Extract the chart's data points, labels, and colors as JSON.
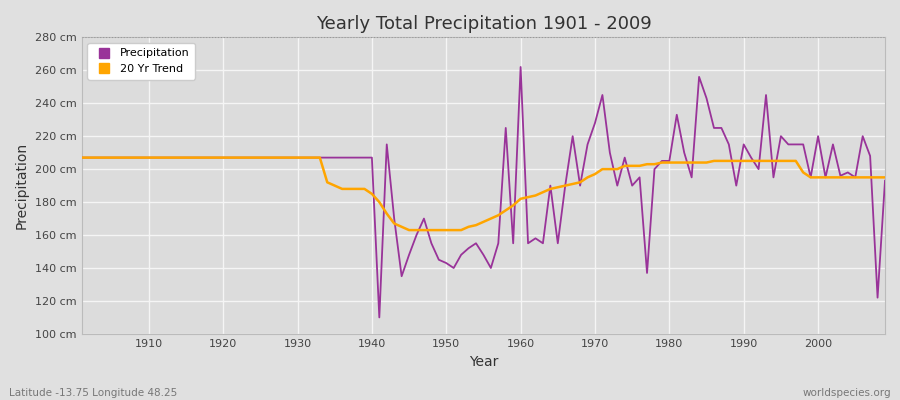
{
  "title": "Yearly Total Precipitation 1901 - 2009",
  "xlabel": "Year",
  "ylabel": "Precipitation",
  "bottom_left_label": "Latitude -13.75 Longitude 48.25",
  "bottom_right_label": "worldspecies.org",
  "ylim": [
    100,
    280
  ],
  "xlim": [
    1901,
    2009
  ],
  "ytick_labels": [
    "100 cm",
    "120 cm",
    "140 cm",
    "160 cm",
    "180 cm",
    "200 cm",
    "220 cm",
    "240 cm",
    "260 cm",
    "280 cm"
  ],
  "ytick_values": [
    100,
    120,
    140,
    160,
    180,
    200,
    220,
    240,
    260,
    280
  ],
  "xtick_values": [
    1910,
    1920,
    1930,
    1940,
    1950,
    1960,
    1970,
    1980,
    1990,
    2000
  ],
  "precip_color": "#993399",
  "trend_color": "#FFA500",
  "background_color": "#E0E0E0",
  "plot_bg_color": "#DCDCDC",
  "grid_color": "#F5F5F5",
  "legend_labels": [
    "Precipitation",
    "20 Yr Trend"
  ],
  "years": [
    1901,
    1902,
    1903,
    1904,
    1905,
    1906,
    1907,
    1908,
    1909,
    1910,
    1911,
    1912,
    1913,
    1914,
    1915,
    1916,
    1917,
    1918,
    1919,
    1920,
    1921,
    1922,
    1923,
    1924,
    1925,
    1926,
    1927,
    1928,
    1929,
    1930,
    1931,
    1932,
    1933,
    1934,
    1935,
    1936,
    1937,
    1938,
    1939,
    1940,
    1941,
    1942,
    1943,
    1944,
    1945,
    1946,
    1947,
    1948,
    1949,
    1950,
    1951,
    1952,
    1953,
    1954,
    1955,
    1956,
    1957,
    1958,
    1959,
    1960,
    1961,
    1962,
    1963,
    1964,
    1965,
    1966,
    1967,
    1968,
    1969,
    1970,
    1971,
    1972,
    1973,
    1974,
    1975,
    1976,
    1977,
    1978,
    1979,
    1980,
    1981,
    1982,
    1983,
    1984,
    1985,
    1986,
    1987,
    1988,
    1989,
    1990,
    1991,
    1992,
    1993,
    1994,
    1995,
    1996,
    1997,
    1998,
    1999,
    2000,
    2001,
    2002,
    2003,
    2004,
    2005,
    2006,
    2007,
    2008,
    2009
  ],
  "precip": [
    207,
    207,
    207,
    207,
    207,
    207,
    207,
    207,
    207,
    207,
    207,
    207,
    207,
    207,
    207,
    207,
    207,
    207,
    207,
    207,
    207,
    207,
    207,
    207,
    207,
    207,
    207,
    207,
    207,
    207,
    207,
    207,
    207,
    207,
    207,
    207,
    207,
    207,
    207,
    207,
    110,
    215,
    170,
    135,
    148,
    160,
    170,
    155,
    145,
    143,
    140,
    148,
    152,
    155,
    148,
    140,
    155,
    225,
    155,
    262,
    155,
    158,
    155,
    190,
    155,
    190,
    220,
    190,
    215,
    228,
    245,
    210,
    190,
    207,
    190,
    195,
    137,
    200,
    205,
    205,
    233,
    210,
    195,
    256,
    243,
    225,
    225,
    215,
    190,
    215,
    207,
    200,
    245,
    195,
    220,
    215,
    215,
    215,
    195,
    220,
    195,
    215,
    196,
    198,
    195,
    220,
    208,
    122,
    193
  ],
  "trend": [
    207,
    207,
    207,
    207,
    207,
    207,
    207,
    207,
    207,
    207,
    207,
    207,
    207,
    207,
    207,
    207,
    207,
    207,
    207,
    207,
    207,
    207,
    207,
    207,
    207,
    207,
    207,
    207,
    207,
    207,
    207,
    207,
    207,
    192,
    190,
    188,
    188,
    188,
    188,
    185,
    180,
    173,
    167,
    165,
    163,
    163,
    163,
    163,
    163,
    163,
    163,
    163,
    165,
    166,
    168,
    170,
    172,
    175,
    178,
    182,
    183,
    184,
    186,
    188,
    189,
    190,
    191,
    192,
    195,
    197,
    200,
    200,
    200,
    202,
    202,
    202,
    203,
    203,
    204,
    204,
    204,
    204,
    204,
    204,
    204,
    205,
    205,
    205,
    205,
    205,
    205,
    205,
    205,
    205,
    205,
    205,
    205,
    198,
    195,
    195,
    195,
    195,
    195,
    195,
    195,
    195,
    195,
    195,
    195
  ]
}
